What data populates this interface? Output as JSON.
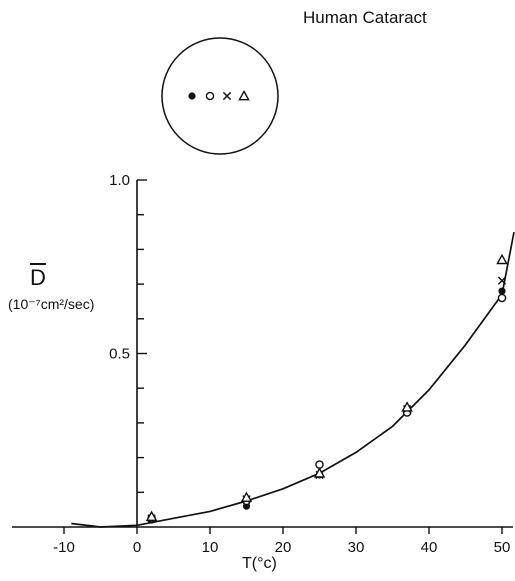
{
  "chart_data": {
    "type": "scatter",
    "title": "Human Cataract",
    "xlabel": "T(°c)",
    "ylabel": "D",
    "ylabel_units": "(10⁻⁷cm²/sec)",
    "xlim": [
      -10,
      55
    ],
    "ylim": [
      0,
      1.0
    ],
    "x_ticks": [
      -10,
      0,
      10,
      20,
      30,
      40,
      50
    ],
    "y_ticks": [
      0.5,
      1.0
    ],
    "y_tick_labels": [
      "0.5",
      "1.0"
    ],
    "grid": false,
    "legend": "inset circle diagram with four marker positions",
    "series": [
      {
        "marker": "filled-circle",
        "points": [
          [
            2,
            0.02
          ],
          [
            15,
            0.06
          ],
          [
            25,
            0.15
          ],
          [
            37,
            0.34
          ],
          [
            50,
            0.68
          ]
        ]
      },
      {
        "marker": "open-circle",
        "points": [
          [
            2,
            0.025
          ],
          [
            15,
            0.075
          ],
          [
            25,
            0.18
          ],
          [
            37,
            0.33
          ],
          [
            50,
            0.66
          ]
        ]
      },
      {
        "marker": "cross",
        "points": [
          [
            2,
            0.025
          ],
          [
            15,
            0.08
          ],
          [
            25,
            0.15
          ],
          [
            37,
            0.34
          ],
          [
            50,
            0.71
          ]
        ]
      },
      {
        "marker": "triangle",
        "points": [
          [
            2,
            0.03
          ],
          [
            15,
            0.085
          ],
          [
            25,
            0.155
          ],
          [
            37,
            0.345
          ],
          [
            50,
            0.77
          ]
        ]
      }
    ],
    "fit_curve": {
      "x": [
        -9,
        -5,
        0,
        5,
        10,
        15,
        20,
        25,
        30,
        35,
        40,
        45,
        50,
        55
      ],
      "y": [
        0.01,
        0.0,
        0.005,
        0.025,
        0.045,
        0.075,
        0.11,
        0.155,
        0.215,
        0.29,
        0.395,
        0.525,
        0.67,
        0.85
      ]
    }
  }
}
